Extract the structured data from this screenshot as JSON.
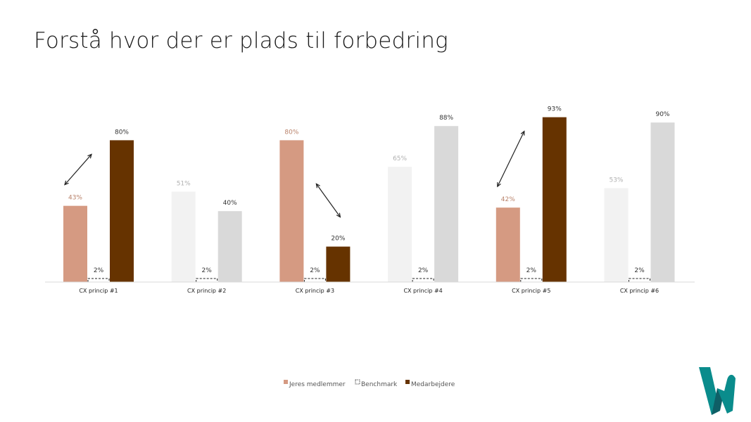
{
  "page": {
    "title": "Forstå hvor der er plads til forbedring"
  },
  "colors": {
    "jeres_highlight": "#d59a82",
    "jeres_default": "#f2f2f2",
    "benchmark": "#ffffff",
    "medarbejdere_highlight": "#663300",
    "medarbejdere_default": "#d9d9d9",
    "axis": "#d9d9d9",
    "label_highlight_jeres": "#b9826a",
    "label_default": "#b0b0b0",
    "label_dark": "#333333",
    "logo_primary": "#0a8c8c",
    "logo_dark": "#0f5f66"
  },
  "chart_data": {
    "type": "bar",
    "title": "",
    "xlabel": "",
    "ylabel": "",
    "ylim": [
      0,
      100
    ],
    "value_suffix": "%",
    "categories": [
      "CX princip #1",
      "CX princip #2",
      "CX princip #3",
      "CX princip #4",
      "CX princip #5",
      "CX princip #6"
    ],
    "series": [
      {
        "name": "Jeres medlemmer",
        "values": [
          43,
          51,
          80,
          65,
          42,
          53
        ],
        "value_labels": [
          "43%",
          "51%",
          "80%",
          "65%",
          "42%",
          "53%"
        ]
      },
      {
        "name": "Benchmark",
        "values": [
          2,
          2,
          2,
          2,
          2,
          2
        ],
        "value_labels": [
          "2%",
          "2%",
          "2%",
          "2%",
          "2%",
          "2%"
        ],
        "style": "dashed-outline"
      },
      {
        "name": "Medarbejdere",
        "values": [
          80,
          40,
          20,
          88,
          93,
          90
        ],
        "value_labels": [
          "80%",
          "40%",
          "20%",
          "88%",
          "93%",
          "90%"
        ]
      }
    ],
    "highlighted_categories": [
      0,
      2,
      4
    ],
    "gap_arrows": [
      0,
      2,
      4
    ],
    "legend": {
      "position": "bottom-center",
      "entries": [
        "Jeres medlemmer",
        "Benchmark",
        "Medarbejdere"
      ]
    },
    "grid": false
  },
  "logo": {
    "icon": "w-logo-icon"
  }
}
